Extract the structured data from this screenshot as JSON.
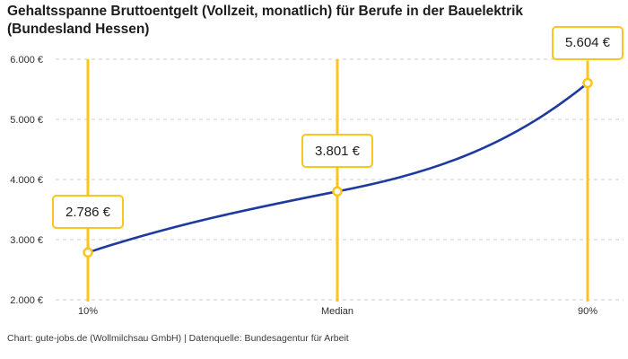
{
  "header": {
    "title": "Gehaltsspanne Bruttoentgelt (Vollzeit, monatlich) für Berufe in der Bauelektrik (Bundesland Hessen)"
  },
  "footer": {
    "text": "Chart: gute-jobs.de (Wollmilchsau GmbH) | Datenquelle: Bundesagentur für Arbeit"
  },
  "chart_data": {
    "type": "line",
    "title": "Gehaltsspanne Bruttoentgelt (Vollzeit, monatlich) für Berufe in der Bauelektrik (Bundesland Hessen)",
    "categories": [
      "10%",
      "Median",
      "90%"
    ],
    "values": [
      2786,
      3801,
      5604
    ],
    "value_labels": [
      "2.786 €",
      "3.801 €",
      "5.604 €"
    ],
    "ylim": [
      2000,
      6000
    ],
    "y_ticks": [
      6000,
      5000,
      4000,
      3000,
      2000
    ],
    "y_tick_labels": [
      "6.000 €",
      "5.000 €",
      "4.000 €",
      "3.000 €",
      "2.000 €"
    ],
    "xlabel": "",
    "ylabel": "",
    "grid": "horizontal-dashed",
    "legend": "none",
    "colors": {
      "line": "#1e3a9f",
      "marker_ring": "#fcc41f",
      "marker_fill": "#ffffff",
      "percentile_line": "#fcc41f",
      "label_box_border": "#fcc41f",
      "label_box_bg": "#ffffff",
      "grid": "#cccccc",
      "tick_text": "#2e2e2e",
      "text": "#1d1d1d"
    }
  }
}
